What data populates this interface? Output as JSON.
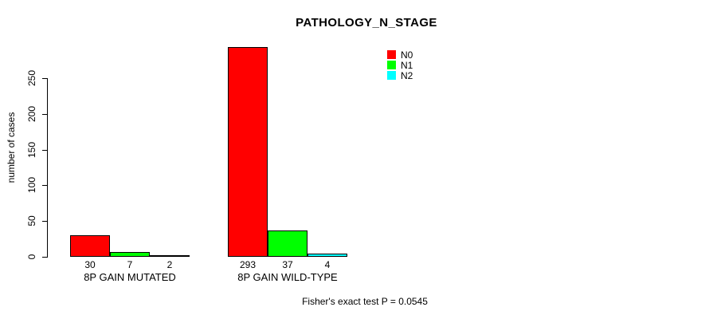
{
  "chart_data": {
    "type": "bar",
    "title": "PATHOLOGY_N_STAGE",
    "ylabel": "number of cases",
    "xlabel": "",
    "footer": "Fisher's exact test P = 0.0545",
    "categories": [
      "8P GAIN MUTATED",
      "8P GAIN WILD-TYPE"
    ],
    "series": [
      {
        "name": "N0",
        "color": "#ff0000",
        "values": [
          30,
          293
        ]
      },
      {
        "name": "N1",
        "color": "#00ff00",
        "values": [
          7,
          37
        ]
      },
      {
        "name": "N2",
        "color": "#00ffff",
        "values": [
          2,
          4
        ]
      }
    ],
    "yticks": [
      0,
      50,
      100,
      150,
      200,
      250
    ],
    "ylim": [
      0,
      293
    ],
    "grid": false,
    "legend_position": "top-right",
    "show_value_labels": true,
    "bar_border_color": "#000000",
    "background_color": "#ffffff"
  }
}
